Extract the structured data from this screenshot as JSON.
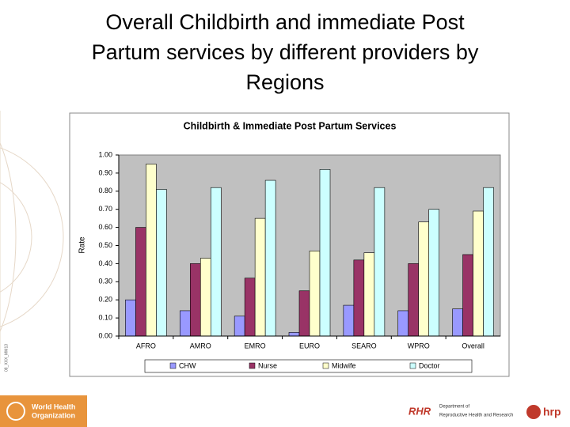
{
  "slide": {
    "title": [
      "Overall  Childbirth and immediate Post",
      "Partum services by different providers by",
      "Regions"
    ],
    "side_code": "08_XXX_MM13",
    "who": [
      "World Health",
      "Organization"
    ],
    "rhr": "RHR",
    "department": [
      "Department of",
      "Reproductive Health and Research"
    ],
    "hrp": "hrp"
  },
  "chart_data": {
    "type": "bar",
    "title": "Childbirth & Immediate Post Partum Services",
    "y_label": "Rate",
    "categories": [
      "AFRO",
      "AMRO",
      "EMRO",
      "EURO",
      "SEARO",
      "WPRO",
      "Overall"
    ],
    "series": [
      {
        "name": "CHW",
        "color": "#9999ff",
        "values": [
          0.2,
          0.14,
          0.11,
          0.02,
          0.17,
          0.14,
          0.15
        ]
      },
      {
        "name": "Nurse",
        "color": "#993366",
        "values": [
          0.6,
          0.4,
          0.32,
          0.25,
          0.42,
          0.4,
          0.45
        ]
      },
      {
        "name": "Midwife",
        "color": "#ffffcc",
        "values": [
          0.95,
          0.43,
          0.65,
          0.47,
          0.46,
          0.63,
          0.69
        ]
      },
      {
        "name": "Doctor",
        "color": "#ccffff",
        "values": [
          0.81,
          0.82,
          0.86,
          0.92,
          0.82,
          0.7,
          0.82
        ]
      }
    ],
    "ylim": [
      0,
      1
    ],
    "yticks": [
      {
        "value": 0,
        "label": "0.00"
      },
      {
        "value": 0.1,
        "label": "0.10"
      },
      {
        "value": 0.2,
        "label": "0.20"
      },
      {
        "value": 0.3,
        "label": "0.30"
      },
      {
        "value": 0.4,
        "label": "0.40"
      },
      {
        "value": 0.5,
        "label": "0.50"
      },
      {
        "value": 0.6,
        "label": "0.60"
      },
      {
        "value": 0.7,
        "label": "0.70"
      },
      {
        "value": 0.8,
        "label": "0.80"
      },
      {
        "value": 0.9,
        "label": "0.90"
      },
      {
        "value": 1,
        "label": "1.00"
      }
    ],
    "plot_background": "#c0c0c0",
    "legend": "bottom"
  }
}
